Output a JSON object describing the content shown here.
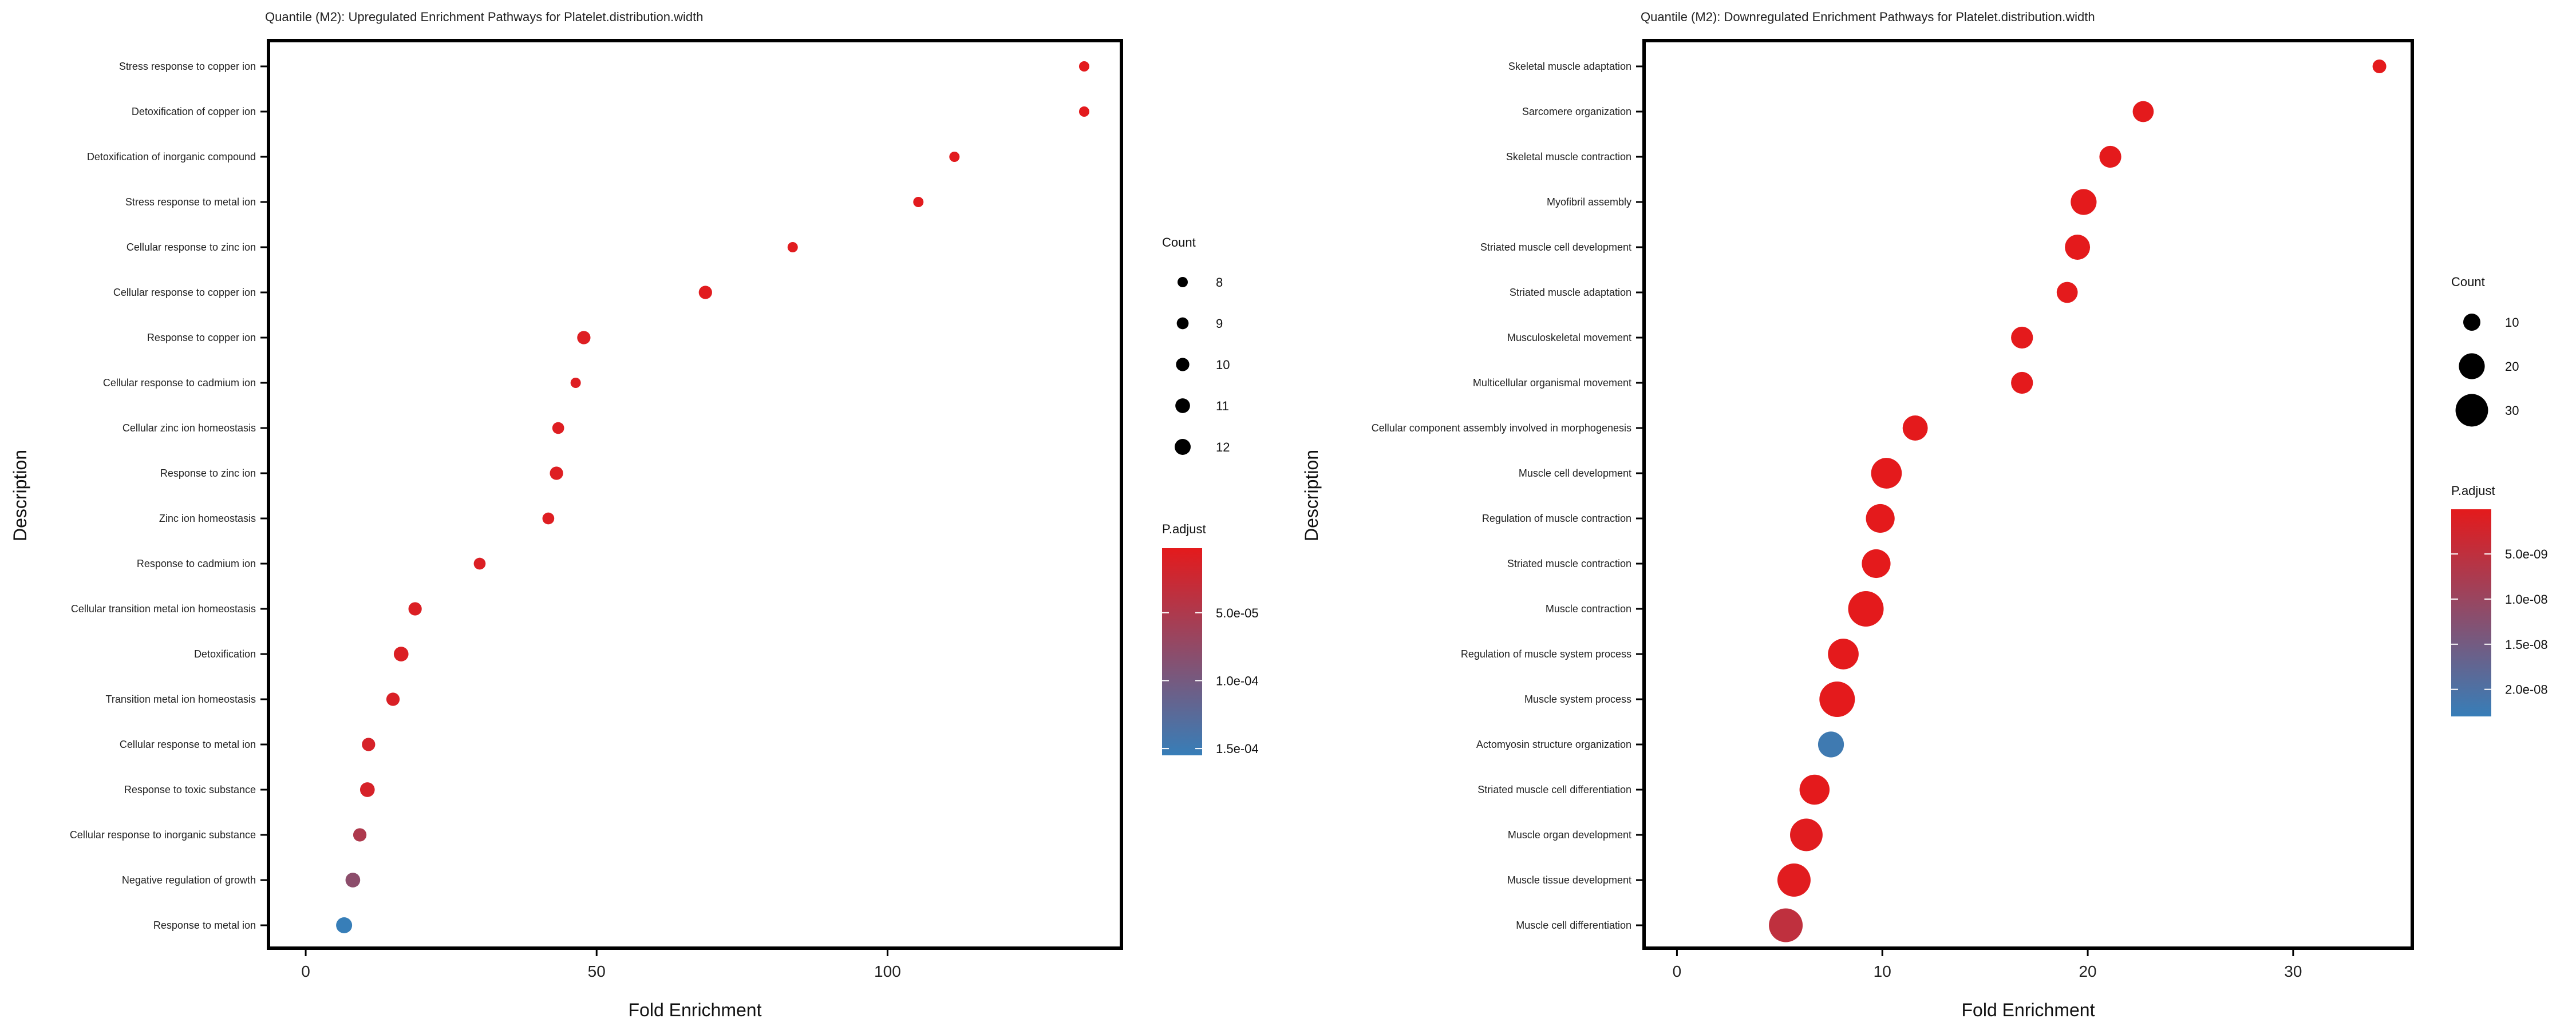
{
  "charts": [
    {
      "type": "scatter",
      "title": "Quantile (M2): Upregulated Enrichment Pathways for Platelet.distribution.width",
      "xlabel": "Fold Enrichment",
      "ylabel": "Description",
      "xlim": [
        -6.4,
        140.2
      ],
      "xticks": [
        0,
        50,
        100
      ],
      "size_legend_title": "Count",
      "size_domain": [
        8,
        12
      ],
      "size_legend": [
        8,
        9,
        10,
        11,
        12
      ],
      "color_legend_title": "P.adjust",
      "color_domain": [
        2.5e-06,
        0.000155
      ],
      "color_legend": [
        {
          "value": 5e-05,
          "label": "5.0e-05"
        },
        {
          "value": 0.0001,
          "label": "1.0e-04"
        },
        {
          "value": 0.00015,
          "label": "1.5e-04"
        }
      ],
      "points": [
        {
          "label": "Stress response to copper ion",
          "x": 133.8,
          "count": 8,
          "padj": 3e-06
        },
        {
          "label": "Detoxification of copper ion",
          "x": 133.8,
          "count": 8,
          "padj": 3e-06
        },
        {
          "label": "Detoxification of inorganic compound",
          "x": 111.5,
          "count": 8,
          "padj": 4e-06
        },
        {
          "label": "Stress response to metal ion",
          "x": 105.3,
          "count": 8,
          "padj": 4e-06
        },
        {
          "label": "Cellular response to zinc ion",
          "x": 83.7,
          "count": 8,
          "padj": 5e-06
        },
        {
          "label": "Cellular response to copper ion",
          "x": 68.7,
          "count": 10,
          "padj": 5e-06
        },
        {
          "label": "Response to copper ion",
          "x": 47.8,
          "count": 10,
          "padj": 8e-06
        },
        {
          "label": "Cellular response to cadmium ion",
          "x": 46.4,
          "count": 8,
          "padj": 8e-06
        },
        {
          "label": "Cellular zinc ion homeostasis",
          "x": 43.4,
          "count": 9,
          "padj": 8e-06
        },
        {
          "label": "Response to zinc ion",
          "x": 43.1,
          "count": 10,
          "padj": 8e-06
        },
        {
          "label": "Zinc ion homeostasis",
          "x": 41.7,
          "count": 9,
          "padj": 8e-06
        },
        {
          "label": "Response to cadmium ion",
          "x": 29.9,
          "count": 9,
          "padj": 1e-05
        },
        {
          "label": "Cellular transition metal ion homeostasis",
          "x": 18.8,
          "count": 10,
          "padj": 1e-05
        },
        {
          "label": "Detoxification",
          "x": 16.4,
          "count": 11,
          "padj": 1e-05
        },
        {
          "label": "Transition metal ion homeostasis",
          "x": 15.0,
          "count": 10,
          "padj": 1.2e-05
        },
        {
          "label": "Cellular response to metal ion",
          "x": 10.8,
          "count": 10,
          "padj": 1.5e-05
        },
        {
          "label": "Response to toxic substance",
          "x": 10.6,
          "count": 11,
          "padj": 1.5e-05
        },
        {
          "label": "Cellular response to inorganic substance",
          "x": 9.3,
          "count": 10,
          "padj": 5e-05
        },
        {
          "label": "Negative regulation of growth",
          "x": 8.1,
          "count": 11,
          "padj": 8e-05
        },
        {
          "label": "Response to metal ion",
          "x": 6.6,
          "count": 12,
          "padj": 0.000155
        }
      ]
    },
    {
      "type": "scatter",
      "title": "Quantile (M2): Downregulated Enrichment Pathways for Platelet.distribution.width",
      "xlabel": "Fold Enrichment",
      "ylabel": "Description",
      "xlim": [
        -1.6,
        35.8
      ],
      "xticks": [
        0,
        10,
        20,
        30
      ],
      "size_legend_title": "Count",
      "size_domain": [
        7,
        35
      ],
      "size_legend": [
        10,
        20,
        30
      ],
      "color_legend_title": "P.adjust",
      "color_domain": [
        5e-11,
        2.3e-08
      ],
      "color_legend": [
        {
          "value": 5e-09,
          "label": "5.0e-09"
        },
        {
          "value": 1e-08,
          "label": "1.0e-08"
        },
        {
          "value": 1.5e-08,
          "label": "1.5e-08"
        },
        {
          "value": 2e-08,
          "label": "2.0e-08"
        }
      ],
      "points": [
        {
          "label": "Skeletal muscle adaptation",
          "x": 34.2,
          "count": 7,
          "padj": 1e-10
        },
        {
          "label": "Sarcomere organization",
          "x": 22.7,
          "count": 14,
          "padj": 1e-10
        },
        {
          "label": "Skeletal muscle contraction",
          "x": 21.1,
          "count": 15,
          "padj": 1e-10
        },
        {
          "label": "Myofibril assembly",
          "x": 19.8,
          "count": 20,
          "padj": 1e-10
        },
        {
          "label": "Striated muscle cell development",
          "x": 19.5,
          "count": 19,
          "padj": 1e-10
        },
        {
          "label": "Striated muscle adaptation",
          "x": 19.0,
          "count": 14,
          "padj": 1e-10
        },
        {
          "label": "Musculoskeletal movement",
          "x": 16.8,
          "count": 15,
          "padj": 1e-10
        },
        {
          "label": "Multicellular organismal movement",
          "x": 16.8,
          "count": 15,
          "padj": 1e-10
        },
        {
          "label": "Cellular component assembly involved in morphogenesis",
          "x": 11.6,
          "count": 19,
          "padj": 1e-10
        },
        {
          "label": "Muscle cell development",
          "x": 10.2,
          "count": 27,
          "padj": 1e-10
        },
        {
          "label": "Regulation of muscle contraction",
          "x": 9.9,
          "count": 24,
          "padj": 1e-10
        },
        {
          "label": "Striated muscle contraction",
          "x": 9.7,
          "count": 24,
          "padj": 1e-10
        },
        {
          "label": "Muscle contraction",
          "x": 9.2,
          "count": 35,
          "padj": 1e-10
        },
        {
          "label": "Regulation of muscle system process",
          "x": 8.1,
          "count": 27,
          "padj": 1e-10
        },
        {
          "label": "Muscle system process",
          "x": 7.8,
          "count": 35,
          "padj": 1e-10
        },
        {
          "label": "Actomyosin structure organization",
          "x": 7.5,
          "count": 20,
          "padj": 2.2e-08
        },
        {
          "label": "Striated muscle cell differentiation",
          "x": 6.7,
          "count": 26,
          "padj": 1e-10
        },
        {
          "label": "Muscle organ development",
          "x": 6.3,
          "count": 30,
          "padj": 5e-10
        },
        {
          "label": "Muscle tissue development",
          "x": 5.7,
          "count": 31,
          "padj": 5e-10
        },
        {
          "label": "Muscle cell differentiation",
          "x": 5.3,
          "count": 32,
          "padj": 5e-09
        }
      ]
    }
  ],
  "colors": {
    "low": "#e41a1c",
    "high": "#377eb8",
    "axis": "#000000",
    "text": "#222222"
  }
}
